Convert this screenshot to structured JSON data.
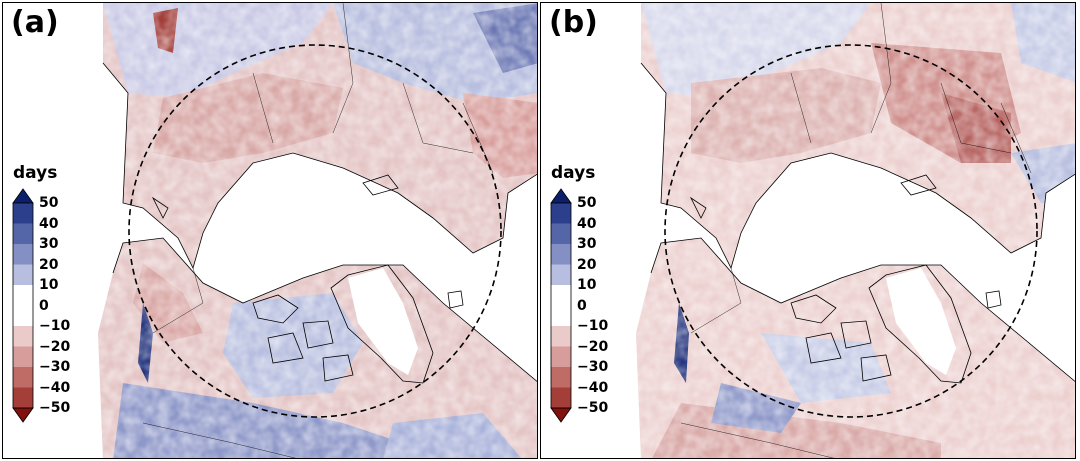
{
  "panels": [
    {
      "id": "a",
      "label": "(a)"
    },
    {
      "id": "b",
      "label": "(b)"
    }
  ],
  "colorbar": {
    "title": "days",
    "ticks": [
      "50",
      "40",
      "30",
      "20",
      "10",
      "0",
      "−10",
      "−20",
      "−30",
      "−40",
      "−50"
    ],
    "tick_values": [
      50,
      40,
      30,
      20,
      10,
      0,
      -10,
      -20,
      -30,
      -40,
      -50
    ],
    "extend": "both",
    "colors_top_to_bottom": [
      "#0b1f6b",
      "#2c3f8c",
      "#5566a8",
      "#8490c4",
      "#b7bedf",
      "#ffffff",
      "#ebcaca",
      "#d79d9a",
      "#bf6b66",
      "#a33e39",
      "#82100c"
    ]
  }
}
